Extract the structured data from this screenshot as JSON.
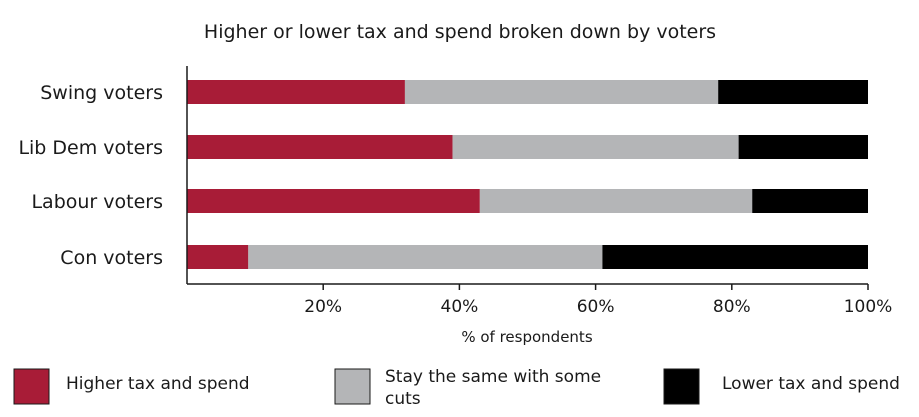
{
  "chart_data": {
    "type": "bar",
    "orientation": "horizontal",
    "stacked": true,
    "title": "Higher or lower tax and spend broken down by voters",
    "xlabel": "% of respondents",
    "ylabel": "",
    "xlim": [
      0,
      100
    ],
    "xticks": [
      "20%",
      "40%",
      "60%",
      "80%",
      "100%"
    ],
    "tick_values": [
      20,
      40,
      60,
      80,
      100
    ],
    "categories": [
      "Swing voters",
      "Lib Dem voters",
      "Labour voters",
      "Con voters"
    ],
    "series": [
      {
        "name": "Higher tax and spend",
        "color": "#a81c37",
        "values": [
          32,
          39,
          43,
          9
        ]
      },
      {
        "name": "Stay the same with some cuts",
        "color": "#b4b5b7",
        "values": [
          46,
          42,
          40,
          52
        ]
      },
      {
        "name": "Lower tax and spend",
        "color": "#000000",
        "values": [
          22,
          19,
          17,
          39
        ]
      }
    ],
    "legend_position": "bottom",
    "grid": false
  }
}
